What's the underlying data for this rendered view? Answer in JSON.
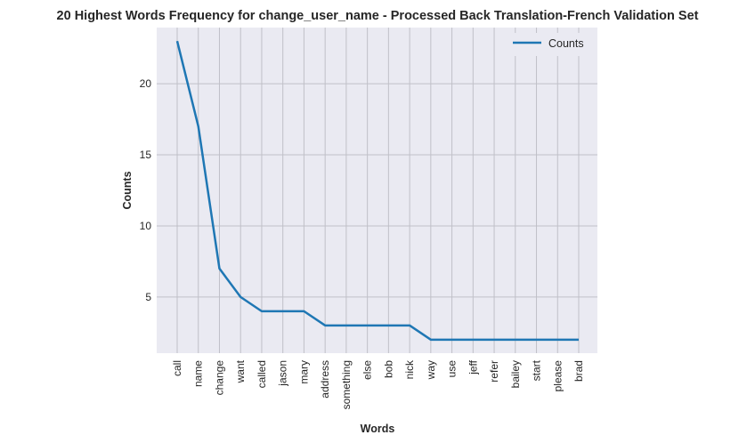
{
  "chart_data": {
    "type": "line",
    "title": "20 Highest Words Frequency for change_user_name - Processed Back Translation-French Validation Set",
    "xlabel": "Words",
    "ylabel": "Counts",
    "categories": [
      "call",
      "name",
      "change",
      "want",
      "called",
      "jason",
      "mary",
      "address",
      "something",
      "else",
      "bob",
      "nick",
      "way",
      "use",
      "jeff",
      "refer",
      "bailey",
      "start",
      "please",
      "brad"
    ],
    "series": [
      {
        "name": "Counts",
        "values": [
          23,
          17,
          7,
          5,
          4,
          4,
          4,
          3,
          3,
          3,
          3,
          3,
          2,
          2,
          2,
          2,
          2,
          2,
          2,
          2
        ]
      }
    ],
    "yticks": [
      5,
      10,
      15,
      20
    ],
    "ylim": [
      1.05,
      23.95
    ],
    "grid": true,
    "legend_position": "top-right",
    "colors": {
      "line": "#1f77b4",
      "plot_bg": "#eaeaf2",
      "grid": "#c0c0c8"
    }
  }
}
